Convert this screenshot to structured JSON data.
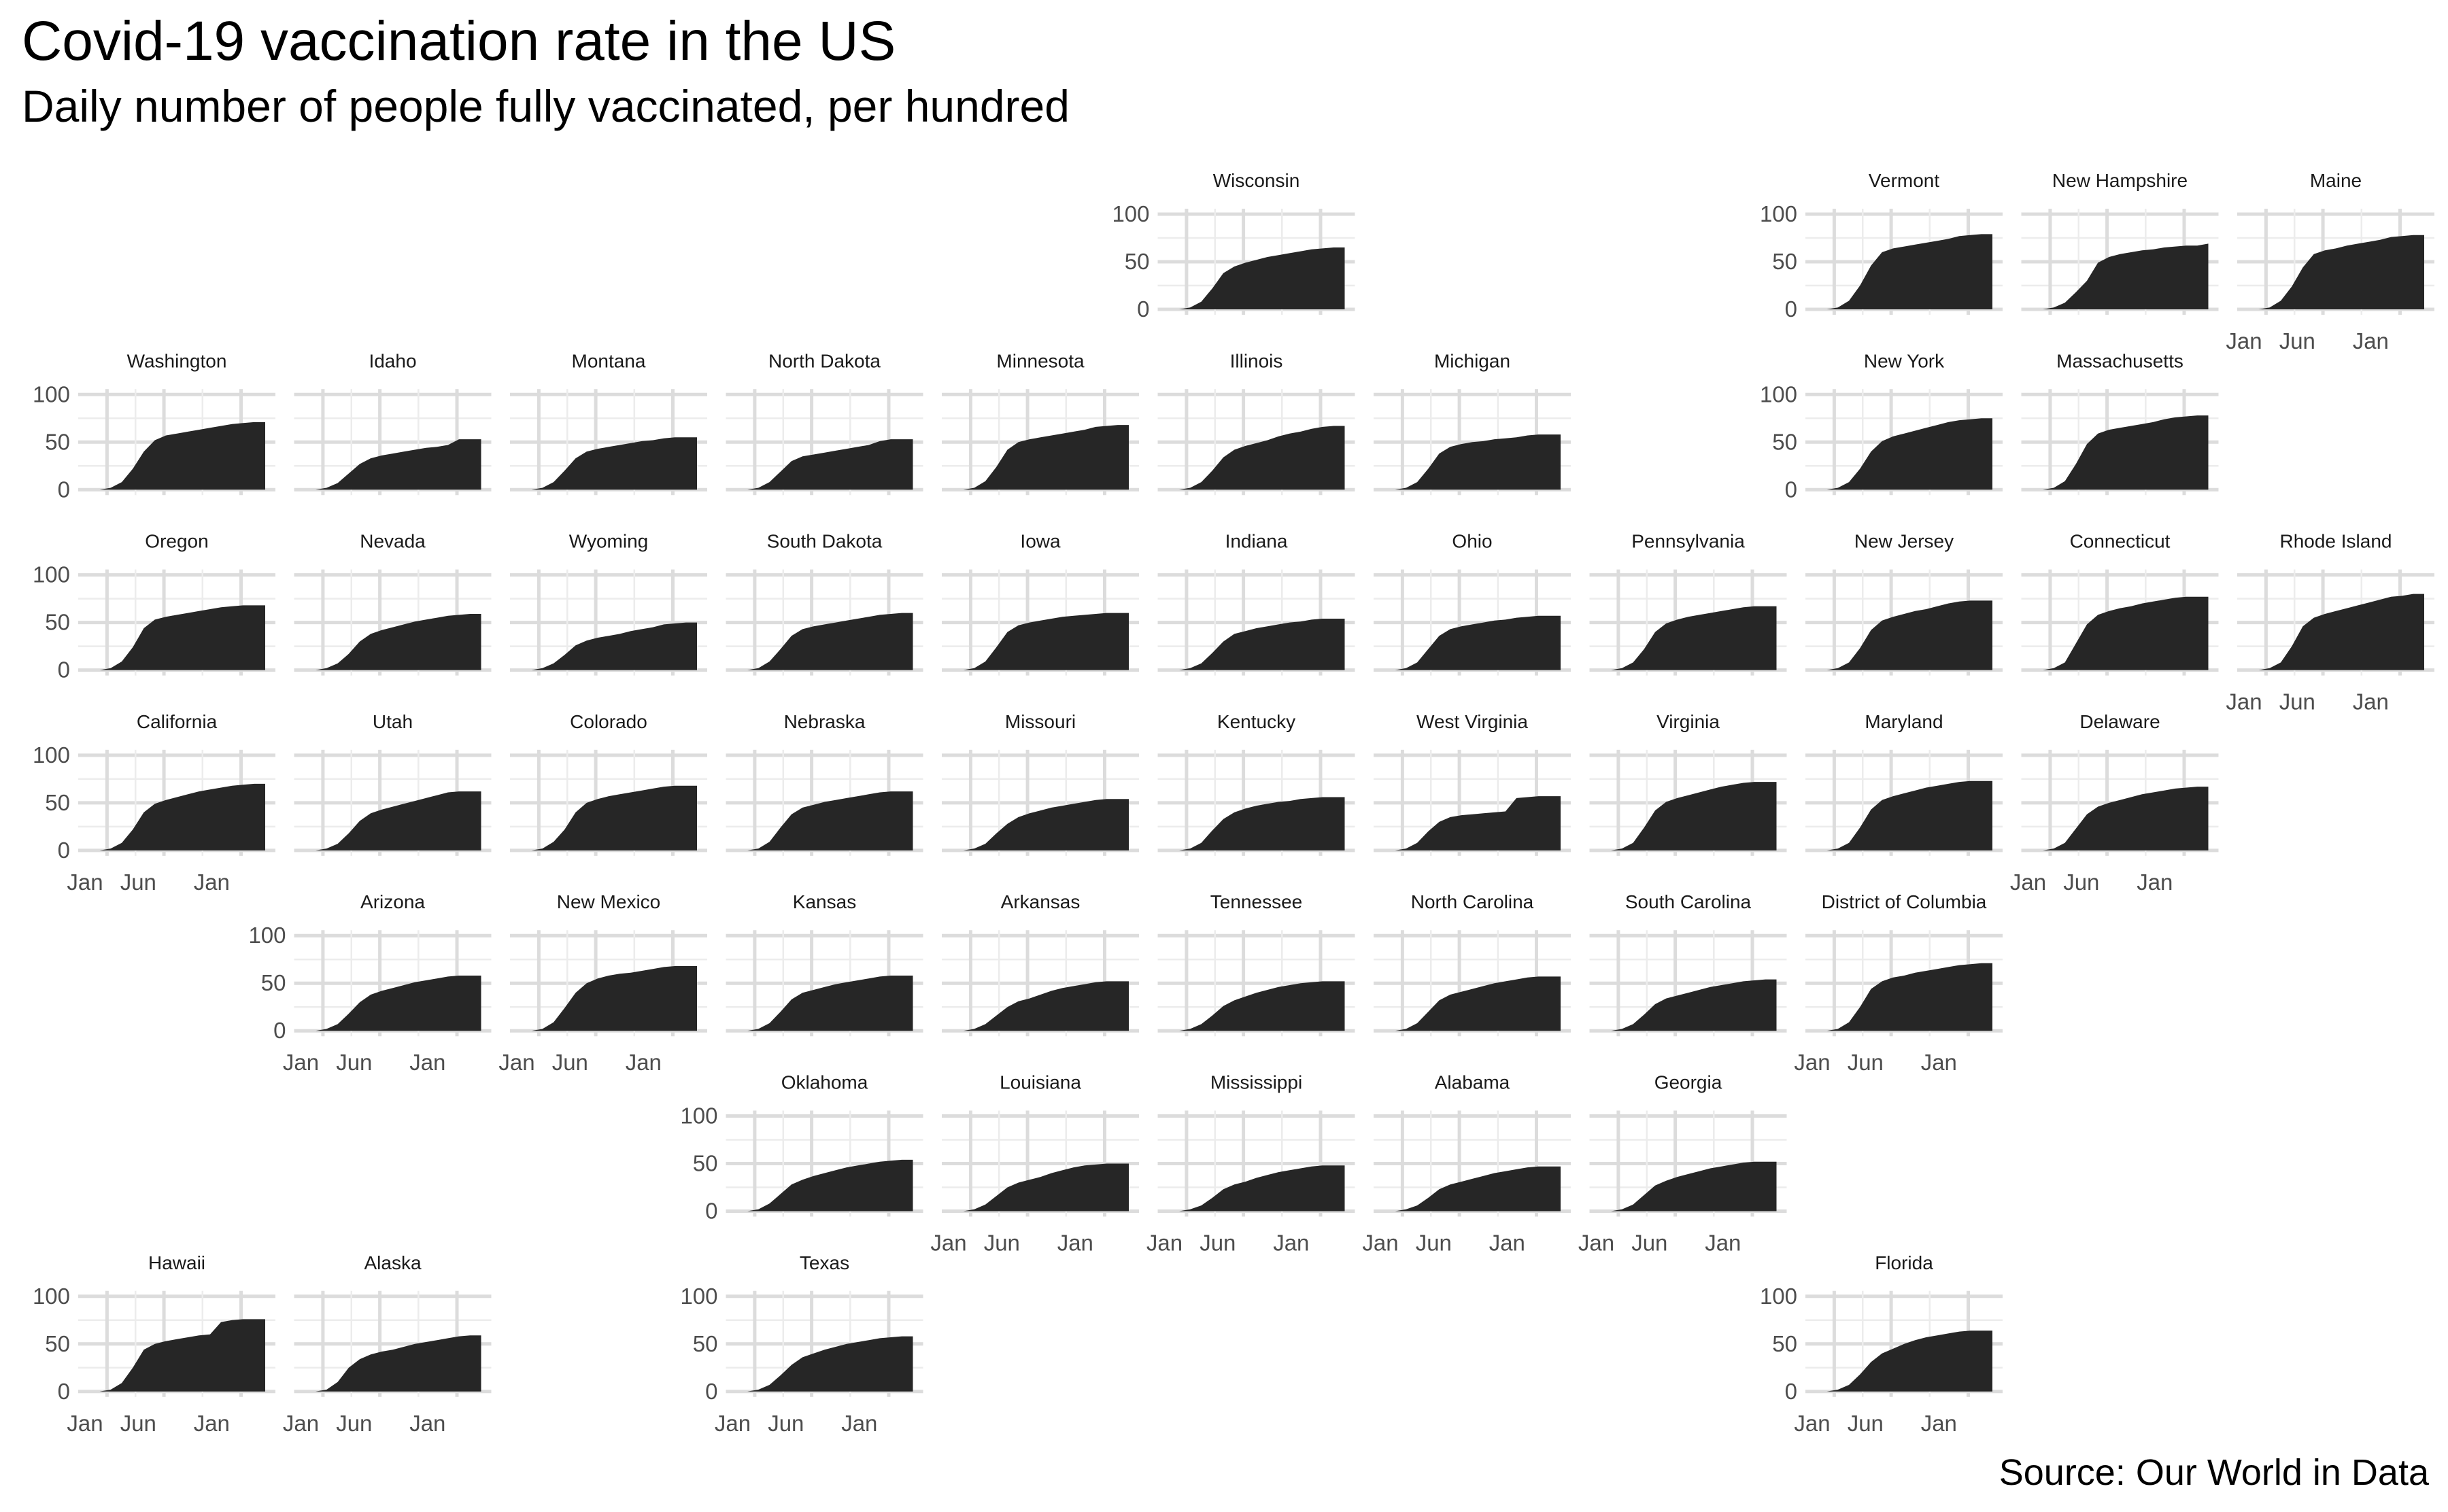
{
  "title": "Covid-19 vaccination rate in the US",
  "subtitle": "Daily number of people fully vaccinated, per hundred",
  "caption": "Source: Our World in Data",
  "chart_data": {
    "type": "area",
    "layout": "geofacet grid of US states",
    "x_ticks": [
      "Jan",
      "Jun",
      "Jan"
    ],
    "y_ticks": [
      0,
      50,
      100
    ],
    "ylim": [
      0,
      100
    ],
    "xlim": [
      "2021-01",
      "2022-04"
    ],
    "grid": true,
    "fill_color": "#262626",
    "grid_color": "#dcdcdc",
    "x": [
      "2021-01",
      "2021-02",
      "2021-03",
      "2021-04",
      "2021-05",
      "2021-06",
      "2021-07",
      "2021-08",
      "2021-09",
      "2021-10",
      "2021-11",
      "2021-12",
      "2022-01",
      "2022-02",
      "2022-03",
      "2022-04"
    ],
    "series": [
      {
        "name": "Wisconsin",
        "row": 0,
        "col": 5,
        "values": [
          0,
          2,
          8,
          22,
          38,
          45,
          49,
          52,
          55,
          57,
          59,
          61,
          63,
          64,
          65,
          65
        ]
      },
      {
        "name": "Vermont",
        "row": 0,
        "col": 8,
        "values": [
          0,
          2,
          9,
          25,
          46,
          60,
          64,
          66,
          68,
          70,
          72,
          74,
          77,
          78,
          79,
          79
        ]
      },
      {
        "name": "New Hampshire",
        "row": 0,
        "col": 9,
        "values": [
          0,
          2,
          7,
          18,
          30,
          49,
          55,
          58,
          60,
          62,
          63,
          65,
          66,
          67,
          67,
          69
        ]
      },
      {
        "name": "Maine",
        "row": 0,
        "col": 10,
        "values": [
          0,
          2,
          9,
          24,
          44,
          58,
          62,
          64,
          67,
          69,
          71,
          73,
          76,
          77,
          78,
          78
        ]
      },
      {
        "name": "Washington",
        "row": 1,
        "col": 0,
        "values": [
          0,
          2,
          8,
          22,
          40,
          52,
          57,
          59,
          61,
          63,
          65,
          67,
          69,
          70,
          71,
          71
        ]
      },
      {
        "name": "Idaho",
        "row": 1,
        "col": 1,
        "values": [
          0,
          2,
          7,
          17,
          27,
          33,
          36,
          38,
          40,
          42,
          44,
          45,
          47,
          53,
          53,
          53
        ]
      },
      {
        "name": "Montana",
        "row": 1,
        "col": 2,
        "values": [
          0,
          2,
          8,
          20,
          33,
          40,
          43,
          45,
          47,
          49,
          51,
          52,
          54,
          55,
          55,
          55
        ]
      },
      {
        "name": "North Dakota",
        "row": 1,
        "col": 3,
        "values": [
          0,
          2,
          8,
          19,
          30,
          35,
          37,
          39,
          41,
          43,
          45,
          47,
          51,
          53,
          53,
          53
        ]
      },
      {
        "name": "Minnesota",
        "row": 1,
        "col": 4,
        "values": [
          0,
          2,
          9,
          24,
          42,
          50,
          53,
          55,
          57,
          59,
          61,
          63,
          66,
          67,
          68,
          68
        ]
      },
      {
        "name": "Illinois",
        "row": 1,
        "col": 5,
        "values": [
          0,
          2,
          8,
          20,
          34,
          42,
          46,
          49,
          52,
          56,
          59,
          61,
          64,
          66,
          67,
          67
        ]
      },
      {
        "name": "Michigan",
        "row": 1,
        "col": 6,
        "values": [
          0,
          2,
          8,
          22,
          38,
          45,
          48,
          50,
          51,
          53,
          54,
          55,
          57,
          58,
          58,
          58
        ]
      },
      {
        "name": "New York",
        "row": 1,
        "col": 8,
        "values": [
          0,
          2,
          8,
          22,
          40,
          51,
          56,
          59,
          62,
          65,
          68,
          71,
          73,
          74,
          75,
          75
        ]
      },
      {
        "name": "Massachusetts",
        "row": 1,
        "col": 9,
        "values": [
          0,
          2,
          9,
          27,
          48,
          59,
          63,
          65,
          67,
          69,
          71,
          74,
          76,
          77,
          78,
          78
        ]
      },
      {
        "name": "Oregon",
        "row": 2,
        "col": 0,
        "values": [
          0,
          2,
          9,
          24,
          44,
          53,
          56,
          58,
          60,
          62,
          64,
          66,
          67,
          68,
          68,
          68
        ]
      },
      {
        "name": "Nevada",
        "row": 2,
        "col": 1,
        "values": [
          0,
          2,
          7,
          17,
          30,
          38,
          42,
          45,
          48,
          51,
          53,
          55,
          57,
          58,
          59,
          59
        ]
      },
      {
        "name": "Wyoming",
        "row": 2,
        "col": 2,
        "values": [
          0,
          2,
          7,
          16,
          26,
          31,
          34,
          36,
          38,
          41,
          43,
          45,
          48,
          49,
          50,
          50
        ]
      },
      {
        "name": "South Dakota",
        "row": 2,
        "col": 3,
        "values": [
          0,
          2,
          9,
          22,
          36,
          43,
          46,
          48,
          50,
          52,
          54,
          56,
          58,
          59,
          60,
          60
        ]
      },
      {
        "name": "Iowa",
        "row": 2,
        "col": 4,
        "values": [
          0,
          2,
          9,
          24,
          40,
          47,
          50,
          52,
          54,
          56,
          57,
          58,
          59,
          60,
          60,
          60
        ]
      },
      {
        "name": "Indiana",
        "row": 2,
        "col": 5,
        "values": [
          0,
          2,
          7,
          18,
          30,
          38,
          41,
          44,
          46,
          48,
          50,
          51,
          53,
          54,
          54,
          54
        ]
      },
      {
        "name": "Ohio",
        "row": 2,
        "col": 6,
        "values": [
          0,
          2,
          8,
          22,
          36,
          43,
          46,
          48,
          50,
          52,
          53,
          55,
          56,
          57,
          57,
          57
        ]
      },
      {
        "name": "Pennsylvania",
        "row": 2,
        "col": 7,
        "values": [
          0,
          2,
          8,
          22,
          40,
          49,
          53,
          56,
          58,
          60,
          62,
          64,
          66,
          67,
          67,
          67
        ]
      },
      {
        "name": "New Jersey",
        "row": 2,
        "col": 8,
        "values": [
          0,
          2,
          8,
          23,
          42,
          52,
          56,
          59,
          62,
          64,
          67,
          70,
          72,
          73,
          73,
          73
        ]
      },
      {
        "name": "Connecticut",
        "row": 2,
        "col": 9,
        "values": [
          0,
          2,
          8,
          28,
          48,
          58,
          62,
          65,
          67,
          70,
          72,
          74,
          76,
          77,
          77,
          77
        ]
      },
      {
        "name": "Rhode Island",
        "row": 2,
        "col": 10,
        "values": [
          0,
          2,
          8,
          25,
          46,
          55,
          59,
          62,
          65,
          68,
          71,
          74,
          77,
          78,
          80,
          80
        ]
      },
      {
        "name": "California",
        "row": 3,
        "col": 0,
        "values": [
          0,
          2,
          8,
          22,
          40,
          49,
          53,
          56,
          59,
          62,
          64,
          66,
          68,
          69,
          70,
          70
        ]
      },
      {
        "name": "Utah",
        "row": 3,
        "col": 1,
        "values": [
          0,
          2,
          7,
          18,
          31,
          39,
          43,
          46,
          49,
          52,
          55,
          58,
          61,
          62,
          62,
          62
        ]
      },
      {
        "name": "Colorado",
        "row": 3,
        "col": 2,
        "values": [
          0,
          2,
          9,
          22,
          40,
          50,
          54,
          57,
          59,
          61,
          63,
          65,
          67,
          68,
          68,
          68
        ]
      },
      {
        "name": "Nebraska",
        "row": 3,
        "col": 3,
        "values": [
          0,
          2,
          9,
          24,
          38,
          45,
          48,
          51,
          53,
          55,
          57,
          59,
          61,
          62,
          62,
          62
        ]
      },
      {
        "name": "Missouri",
        "row": 3,
        "col": 4,
        "values": [
          0,
          2,
          7,
          18,
          28,
          35,
          39,
          42,
          45,
          47,
          49,
          51,
          53,
          54,
          54,
          54
        ]
      },
      {
        "name": "Kentucky",
        "row": 3,
        "col": 5,
        "values": [
          0,
          2,
          8,
          21,
          33,
          40,
          44,
          47,
          49,
          51,
          52,
          54,
          55,
          56,
          56,
          56
        ]
      },
      {
        "name": "West Virginia",
        "row": 3,
        "col": 6,
        "values": [
          0,
          2,
          8,
          20,
          30,
          35,
          37,
          38,
          39,
          40,
          41,
          55,
          56,
          57,
          57,
          57
        ]
      },
      {
        "name": "Virginia",
        "row": 3,
        "col": 7,
        "values": [
          0,
          2,
          8,
          24,
          42,
          51,
          55,
          58,
          61,
          64,
          67,
          69,
          71,
          72,
          72,
          72
        ]
      },
      {
        "name": "Maryland",
        "row": 3,
        "col": 8,
        "values": [
          0,
          2,
          8,
          24,
          43,
          53,
          57,
          60,
          63,
          66,
          68,
          70,
          72,
          73,
          73,
          73
        ]
      },
      {
        "name": "Delaware",
        "row": 3,
        "col": 9,
        "values": [
          0,
          2,
          8,
          23,
          38,
          46,
          50,
          53,
          56,
          59,
          61,
          63,
          65,
          66,
          67,
          67
        ]
      },
      {
        "name": "Arizona",
        "row": 4,
        "col": 1,
        "values": [
          0,
          2,
          7,
          18,
          30,
          38,
          42,
          45,
          48,
          51,
          53,
          55,
          57,
          58,
          58,
          58
        ]
      },
      {
        "name": "New Mexico",
        "row": 4,
        "col": 2,
        "values": [
          0,
          2,
          9,
          24,
          40,
          50,
          55,
          58,
          60,
          61,
          63,
          65,
          67,
          68,
          68,
          68
        ]
      },
      {
        "name": "Kansas",
        "row": 4,
        "col": 3,
        "values": [
          0,
          2,
          8,
          20,
          33,
          40,
          43,
          46,
          49,
          51,
          53,
          55,
          57,
          58,
          58,
          58
        ]
      },
      {
        "name": "Arkansas",
        "row": 4,
        "col": 4,
        "values": [
          0,
          2,
          7,
          16,
          25,
          31,
          34,
          38,
          42,
          45,
          47,
          49,
          51,
          52,
          52,
          52
        ]
      },
      {
        "name": "Tennessee",
        "row": 4,
        "col": 5,
        "values": [
          0,
          2,
          7,
          16,
          26,
          32,
          36,
          40,
          43,
          46,
          48,
          50,
          51,
          52,
          52,
          52
        ]
      },
      {
        "name": "North Carolina",
        "row": 4,
        "col": 6,
        "values": [
          0,
          2,
          8,
          20,
          32,
          38,
          41,
          44,
          47,
          50,
          52,
          54,
          56,
          57,
          57,
          57
        ]
      },
      {
        "name": "South Carolina",
        "row": 4,
        "col": 7,
        "values": [
          0,
          2,
          7,
          17,
          28,
          34,
          37,
          40,
          43,
          46,
          48,
          50,
          52,
          53,
          54,
          54
        ]
      },
      {
        "name": "District of Columbia",
        "row": 4,
        "col": 8,
        "values": [
          0,
          2,
          9,
          25,
          44,
          52,
          56,
          58,
          61,
          63,
          65,
          67,
          69,
          70,
          71,
          71
        ]
      },
      {
        "name": "Oklahoma",
        "row": 5,
        "col": 3,
        "values": [
          0,
          2,
          8,
          18,
          28,
          33,
          37,
          40,
          43,
          46,
          48,
          50,
          52,
          53,
          54,
          54
        ]
      },
      {
        "name": "Louisiana",
        "row": 5,
        "col": 4,
        "values": [
          0,
          2,
          7,
          16,
          25,
          30,
          33,
          36,
          40,
          43,
          46,
          48,
          49,
          50,
          50,
          50
        ]
      },
      {
        "name": "Mississippi",
        "row": 5,
        "col": 5,
        "values": [
          0,
          2,
          6,
          14,
          23,
          28,
          31,
          35,
          38,
          41,
          43,
          45,
          47,
          48,
          48,
          48
        ]
      },
      {
        "name": "Alabama",
        "row": 5,
        "col": 6,
        "values": [
          0,
          2,
          6,
          14,
          23,
          28,
          31,
          34,
          37,
          40,
          42,
          44,
          46,
          47,
          47,
          47
        ]
      },
      {
        "name": "Georgia",
        "row": 5,
        "col": 7,
        "values": [
          0,
          2,
          7,
          17,
          27,
          32,
          36,
          39,
          42,
          45,
          47,
          49,
          51,
          52,
          52,
          52
        ]
      },
      {
        "name": "Hawaii",
        "row": 6,
        "col": 0,
        "values": [
          0,
          2,
          9,
          25,
          44,
          50,
          53,
          55,
          57,
          59,
          60,
          73,
          75,
          76,
          76,
          76
        ]
      },
      {
        "name": "Alaska",
        "row": 6,
        "col": 1,
        "values": [
          0,
          2,
          10,
          25,
          34,
          39,
          42,
          44,
          47,
          50,
          52,
          54,
          56,
          58,
          59,
          59
        ]
      },
      {
        "name": "Texas",
        "row": 6,
        "col": 3,
        "values": [
          0,
          2,
          7,
          17,
          28,
          36,
          40,
          44,
          47,
          50,
          52,
          54,
          56,
          57,
          58,
          58
        ]
      },
      {
        "name": "Florida",
        "row": 6,
        "col": 8,
        "values": [
          0,
          2,
          7,
          18,
          31,
          40,
          45,
          50,
          54,
          57,
          59,
          61,
          63,
          64,
          64,
          64
        ]
      }
    ]
  }
}
